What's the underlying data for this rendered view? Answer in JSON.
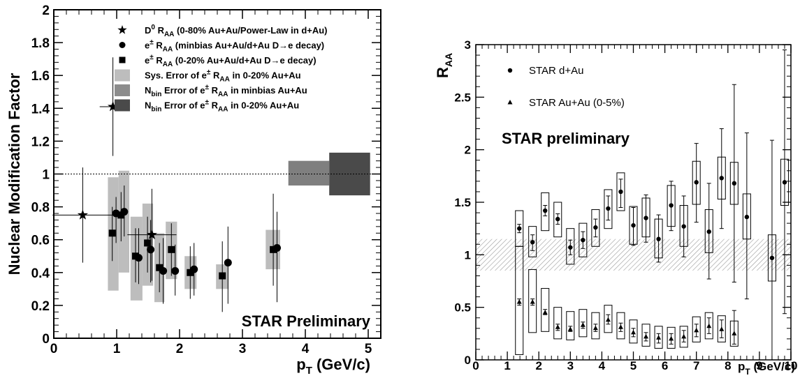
{
  "chart_data": [
    {
      "type": "scatter",
      "ylabel": "Nuclear Modification Factor",
      "xlabel": "p",
      "xlabel_sub": "T",
      "xlabel_unit": " (GeV/c)",
      "xlim": [
        0,
        5.2
      ],
      "ylim": [
        0,
        2
      ],
      "xticks": [
        "0",
        "1",
        "2",
        "3",
        "4",
        "5"
      ],
      "yticks": [
        "0",
        "0.2",
        "0.4",
        "0.6",
        "0.8",
        "1",
        "1.2",
        "1.4",
        "1.6",
        "1.8",
        "2"
      ],
      "reference_line": 1,
      "watermark": "STAR Preliminary",
      "legend": [
        {
          "marker": "star",
          "text": "D⁰ R_AA (0-80% Au+Au/Power-Law in d+Au)"
        },
        {
          "marker": "circle",
          "text": "e± R_AA (minbias Au+Au/d+Au D→e decay)"
        },
        {
          "marker": "square",
          "text": "e± R_AA (0-20% Au+Au/d+Au D→e decay)"
        },
        {
          "marker": "box",
          "color": "#bdbdbd",
          "text": "Sys. Error of e± R_AA in 0-20% Au+Au"
        },
        {
          "marker": "box",
          "color": "#8c8c8c",
          "text": "N_bin Error of e± R_AA in minbias Au+Au"
        },
        {
          "marker": "box",
          "color": "#4a4a4a",
          "text": "N_bin Error of e± R_AA in 0-20% Au+Au"
        }
      ],
      "legend_texts": [
        {
          "main": "D",
          "sup": "0",
          "mid": " R",
          "sub": "AA",
          "rest": " (0-80% Au+Au/Power-Law in d+Au)"
        },
        {
          "main": "e",
          "sup": "±",
          "mid": " R",
          "sub": "AA",
          "rest": " (minbias Au+Au/d+Au D→e decay)"
        },
        {
          "main": "e",
          "sup": "±",
          "mid": " R",
          "sub": "AA",
          "rest": " (0-20% Au+Au/d+Au D→e decay)"
        },
        {
          "main": "Sys. Error of e",
          "sup": "±",
          "mid": " R",
          "sub": "AA",
          "rest": " in 0-20% Au+Au"
        },
        {
          "main": "N",
          "sub0": "bin",
          "main2": " Error of e",
          "sup": "±",
          "mid": " R",
          "sub": "AA",
          "rest": " in minbias Au+Au"
        },
        {
          "main": "N",
          "sub0": "bin",
          "main2": " Error of e",
          "sup": "±",
          "mid": " R",
          "sub": "AA",
          "rest": " in 0-20% Au+Au"
        }
      ],
      "series": [
        {
          "name": "D0",
          "marker": "star",
          "points": [
            {
              "x": 0.46,
              "y": 0.75,
              "xerr": 0.48,
              "ylo": 0.46,
              "yhi": 1.04
            },
            {
              "x": 0.94,
              "y": 1.41,
              "xerr": 0.21,
              "ylo": 1.11,
              "yhi": 1.71
            },
            {
              "x": 1.56,
              "y": 0.63,
              "xerr": 0.39,
              "ylo": 0.35,
              "yhi": 0.91
            }
          ]
        },
        {
          "name": "e minbias",
          "marker": "circle",
          "points": [
            {
              "x": 0.99,
              "y": 0.76,
              "ylo": 0.58,
              "yhi": 0.86
            },
            {
              "x": 1.12,
              "y": 0.77,
              "ylo": 0.62,
              "yhi": 0.93
            },
            {
              "x": 1.35,
              "y": 0.49,
              "ylo": 0.33,
              "yhi": 0.67
            },
            {
              "x": 1.54,
              "y": 0.54,
              "ylo": 0.34,
              "yhi": 0.72
            },
            {
              "x": 1.74,
              "y": 0.41,
              "ylo": 0.21,
              "yhi": 0.61
            },
            {
              "x": 1.93,
              "y": 0.41,
              "ylo": 0.26,
              "yhi": 0.57
            },
            {
              "x": 2.23,
              "y": 0.42,
              "ylo": 0.26,
              "yhi": 0.58
            },
            {
              "x": 2.77,
              "y": 0.46,
              "ylo": 0.21,
              "yhi": 0.68
            },
            {
              "x": 3.55,
              "y": 0.55,
              "ylo": 0.22,
              "yhi": 0.77
            }
          ]
        },
        {
          "name": "e 0-20%",
          "marker": "square",
          "points": [
            {
              "x": 0.93,
              "y": 0.64,
              "ylo": 0.47,
              "yhi": 0.8
            },
            {
              "x": 1.07,
              "y": 0.75,
              "ylo": 0.59,
              "yhi": 0.89
            },
            {
              "x": 1.3,
              "y": 0.5,
              "ylo": 0.34,
              "yhi": 0.67
            },
            {
              "x": 1.49,
              "y": 0.58,
              "ylo": 0.4,
              "yhi": 0.74
            },
            {
              "x": 1.68,
              "y": 0.43,
              "ylo": 0.28,
              "yhi": 0.58
            },
            {
              "x": 1.87,
              "y": 0.54,
              "ylo": 0.38,
              "yhi": 0.7
            },
            {
              "x": 2.17,
              "y": 0.4,
              "ylo": 0.24,
              "yhi": 0.56
            },
            {
              "x": 2.68,
              "y": 0.38,
              "ylo": 0.16,
              "yhi": 0.59
            },
            {
              "x": 3.49,
              "y": 0.54,
              "ylo": 0.32,
              "yhi": 0.88
            }
          ]
        }
      ],
      "sys_boxes": [
        {
          "x0": 0.86,
          "x1": 1.03,
          "y0": 0.29,
          "y1": 0.98
        },
        {
          "x0": 1.03,
          "x1": 1.2,
          "y0": 0.4,
          "y1": 1.02
        },
        {
          "x0": 1.22,
          "x1": 1.41,
          "y0": 0.23,
          "y1": 0.74
        },
        {
          "x0": 1.41,
          "x1": 1.58,
          "y0": 0.32,
          "y1": 0.82
        },
        {
          "x0": 1.6,
          "x1": 1.76,
          "y0": 0.22,
          "y1": 0.64
        },
        {
          "x0": 1.78,
          "x1": 1.96,
          "y0": 0.36,
          "y1": 0.71
        },
        {
          "x0": 2.08,
          "x1": 2.27,
          "y0": 0.3,
          "y1": 0.5
        },
        {
          "x0": 2.58,
          "x1": 2.78,
          "y0": 0.3,
          "y1": 0.45
        },
        {
          "x0": 3.37,
          "x1": 3.6,
          "y0": 0.42,
          "y1": 0.66
        }
      ],
      "nbin_boxes": [
        {
          "x0": 3.73,
          "x1": 4.38,
          "y0": 0.93,
          "y1": 1.08,
          "color": "#7f7f7f"
        },
        {
          "x0": 4.38,
          "x1": 5.03,
          "y0": 0.87,
          "y1": 1.13,
          "color": "#4a4a4a"
        }
      ]
    },
    {
      "type": "scatter",
      "ylabel": "R",
      "ylabel_sub": "AA",
      "xlabel": "p",
      "xlabel_sub": "T",
      "xlabel_unit": " (GeV/c)",
      "xlim": [
        0,
        10
      ],
      "ylim": [
        0,
        3
      ],
      "xticks": [
        "0",
        "1",
        "2",
        "3",
        "4",
        "5",
        "6",
        "7",
        "8",
        "9",
        "10"
      ],
      "yticks": [
        "0",
        "0.5",
        "1",
        "1.5",
        "2",
        "2.5",
        "3"
      ],
      "watermark": "STAR preliminary",
      "legend": [
        {
          "marker": "circle",
          "text": "STAR d+Au"
        },
        {
          "marker": "triangle",
          "text": "STAR Au+Au (0-5%)"
        }
      ],
      "band": {
        "y0": 0.85,
        "y1": 1.15
      },
      "series": [
        {
          "name": "STAR d+Au",
          "marker": "circle",
          "points": [
            {
              "x": 1.38,
              "y": 1.25,
              "blo": 1.08,
              "bhi": 1.42,
              "ylo": 1.21,
              "yhi": 1.29
            },
            {
              "x": 1.8,
              "y": 1.12,
              "blo": 0.98,
              "bhi": 1.27,
              "ylo": 1.04,
              "yhi": 1.19
            },
            {
              "x": 2.2,
              "y": 1.42,
              "blo": 1.23,
              "bhi": 1.59,
              "ylo": 1.37,
              "yhi": 1.47
            },
            {
              "x": 2.6,
              "y": 1.34,
              "blo": 1.17,
              "bhi": 1.5,
              "ylo": 1.29,
              "yhi": 1.39
            },
            {
              "x": 3.0,
              "y": 1.07,
              "blo": 0.91,
              "bhi": 1.25,
              "ylo": 1.0,
              "yhi": 1.14
            },
            {
              "x": 3.4,
              "y": 1.14,
              "blo": 0.98,
              "bhi": 1.3,
              "ylo": 1.06,
              "yhi": 1.22
            },
            {
              "x": 3.8,
              "y": 1.26,
              "blo": 1.08,
              "bhi": 1.43,
              "ylo": 1.17,
              "yhi": 1.34
            },
            {
              "x": 4.2,
              "y": 1.44,
              "blo": 1.25,
              "bhi": 1.62,
              "ylo": 1.33,
              "yhi": 1.56
            },
            {
              "x": 4.6,
              "y": 1.6,
              "blo": 1.42,
              "bhi": 1.78,
              "ylo": 1.45,
              "yhi": 1.72
            },
            {
              "x": 5.0,
              "y": 1.28,
              "blo": 1.1,
              "bhi": 1.46,
              "ylo": 1.09,
              "yhi": 1.45
            },
            {
              "x": 5.4,
              "y": 1.35,
              "blo": 1.17,
              "bhi": 1.54,
              "ylo": 1.12,
              "yhi": 1.57
            },
            {
              "x": 5.8,
              "y": 1.15,
              "blo": 0.97,
              "bhi": 1.34,
              "ylo": 0.93,
              "yhi": 1.38
            },
            {
              "x": 6.2,
              "y": 1.47,
              "blo": 1.27,
              "bhi": 1.66,
              "ylo": 1.23,
              "yhi": 1.7
            },
            {
              "x": 6.6,
              "y": 1.27,
              "blo": 1.08,
              "bhi": 1.47,
              "ylo": 0.98,
              "yhi": 1.56
            },
            {
              "x": 7.0,
              "y": 1.69,
              "blo": 1.48,
              "bhi": 1.89,
              "ylo": 1.31,
              "yhi": 2.06
            },
            {
              "x": 7.4,
              "y": 1.22,
              "blo": 1.02,
              "bhi": 1.43,
              "ylo": 0.77,
              "yhi": 1.68
            },
            {
              "x": 7.8,
              "y": 1.73,
              "blo": 1.53,
              "bhi": 1.93,
              "ylo": 1.25,
              "yhi": 2.2
            },
            {
              "x": 8.2,
              "y": 1.68,
              "blo": 1.48,
              "bhi": 1.88,
              "ylo": 0.74,
              "yhi": 2.62
            },
            {
              "x": 8.6,
              "y": 1.36,
              "blo": 1.15,
              "bhi": 1.58,
              "ylo": 0.58,
              "yhi": 2.16
            },
            {
              "x": 9.4,
              "y": 0.97,
              "blo": 0.75,
              "bhi": 1.19,
              "ylo": 0.0,
              "yhi": 2.09
            },
            {
              "x": 9.8,
              "y": 1.69,
              "blo": 1.47,
              "bhi": 1.91,
              "ylo": 0.44,
              "yhi": 2.95
            }
          ]
        },
        {
          "name": "STAR Au+Au (0-5%)",
          "marker": "triangle",
          "points": [
            {
              "x": 1.38,
              "y": 0.55,
              "blo": 0.05,
              "bhi": 1.08,
              "ylo": 0.52,
              "yhi": 0.58
            },
            {
              "x": 1.8,
              "y": 0.55,
              "blo": 0.26,
              "bhi": 0.86,
              "ylo": 0.52,
              "yhi": 0.58
            },
            {
              "x": 2.2,
              "y": 0.45,
              "blo": 0.27,
              "bhi": 0.68,
              "ylo": 0.43,
              "yhi": 0.48
            },
            {
              "x": 2.6,
              "y": 0.31,
              "blo": 0.2,
              "bhi": 0.5,
              "ylo": 0.28,
              "yhi": 0.34
            },
            {
              "x": 3.0,
              "y": 0.29,
              "blo": 0.19,
              "bhi": 0.46,
              "ylo": 0.27,
              "yhi": 0.32
            },
            {
              "x": 3.4,
              "y": 0.33,
              "blo": 0.22,
              "bhi": 0.48,
              "ylo": 0.3,
              "yhi": 0.36
            },
            {
              "x": 3.8,
              "y": 0.3,
              "blo": 0.2,
              "bhi": 0.45,
              "ylo": 0.27,
              "yhi": 0.34
            },
            {
              "x": 4.2,
              "y": 0.38,
              "blo": 0.26,
              "bhi": 0.52,
              "ylo": 0.34,
              "yhi": 0.43
            },
            {
              "x": 4.6,
              "y": 0.31,
              "blo": 0.2,
              "bhi": 0.45,
              "ylo": 0.27,
              "yhi": 0.35
            },
            {
              "x": 5.0,
              "y": 0.26,
              "blo": 0.16,
              "bhi": 0.38,
              "ylo": 0.22,
              "yhi": 0.3
            },
            {
              "x": 5.4,
              "y": 0.22,
              "blo": 0.13,
              "bhi": 0.34,
              "ylo": 0.18,
              "yhi": 0.26
            },
            {
              "x": 5.8,
              "y": 0.21,
              "blo": 0.11,
              "bhi": 0.32,
              "ylo": 0.16,
              "yhi": 0.25
            },
            {
              "x": 6.2,
              "y": 0.2,
              "blo": 0.11,
              "bhi": 0.31,
              "ylo": 0.15,
              "yhi": 0.25
            },
            {
              "x": 6.6,
              "y": 0.22,
              "blo": 0.12,
              "bhi": 0.32,
              "ylo": 0.17,
              "yhi": 0.28
            },
            {
              "x": 7.0,
              "y": 0.28,
              "blo": 0.17,
              "bhi": 0.41,
              "ylo": 0.22,
              "yhi": 0.34
            },
            {
              "x": 7.4,
              "y": 0.32,
              "blo": 0.2,
              "bhi": 0.45,
              "ylo": 0.25,
              "yhi": 0.4
            },
            {
              "x": 7.8,
              "y": 0.29,
              "blo": 0.17,
              "bhi": 0.42,
              "ylo": 0.21,
              "yhi": 0.38
            },
            {
              "x": 8.2,
              "y": 0.25,
              "blo": 0.13,
              "bhi": 0.37,
              "ylo": 0.15,
              "yhi": 0.47
            }
          ]
        }
      ]
    }
  ]
}
